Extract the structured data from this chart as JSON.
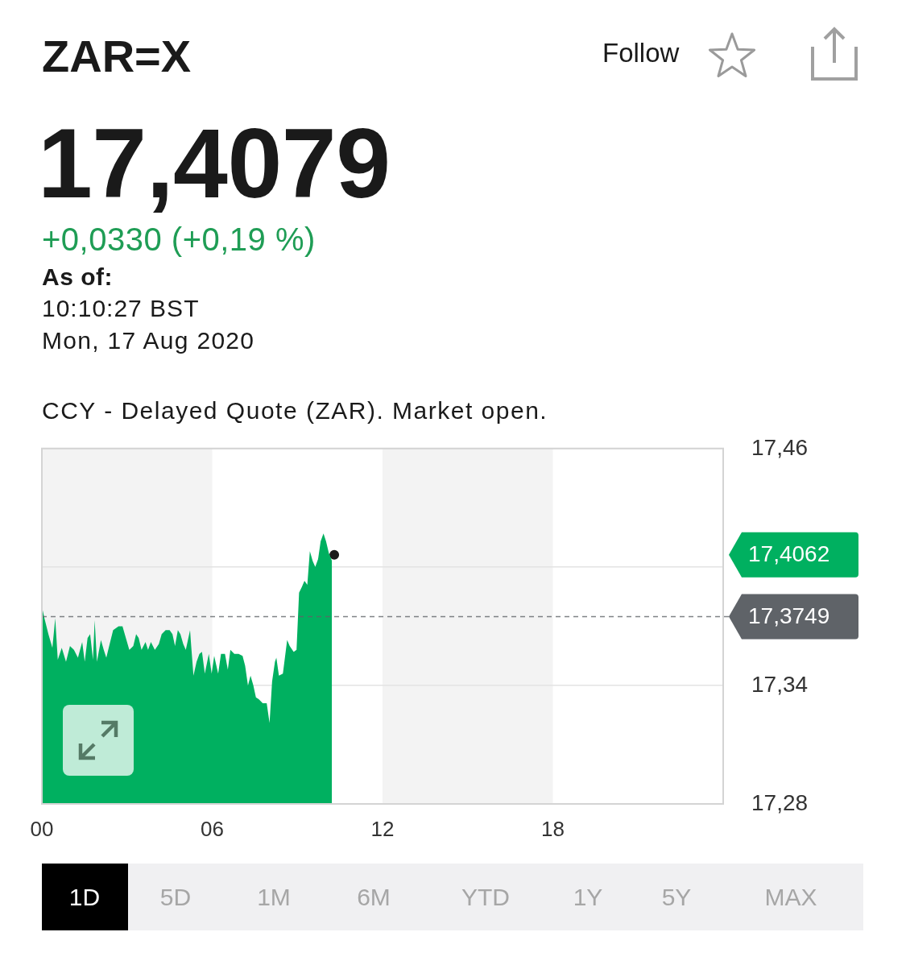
{
  "chart_data": {
    "type": "area",
    "title": "ZAR=X",
    "subtitle": "17,4079",
    "annotations": [
      "+0,0330 (+0,19 %)",
      "As of:",
      "10:10:27 BST",
      "Mon, 17 Aug 2020",
      "CCY - Delayed Quote (ZAR). Market open.",
      "Follow",
      "1D",
      "5D",
      "1M",
      "6M",
      "YTD",
      "1Y",
      "5Y",
      "MAX",
      "17,4062"
    ],
    "xlim": [
      0,
      24
    ],
    "xticks": [
      {
        "value": 0,
        "label": "00"
      },
      {
        "value": 6,
        "label": "06"
      },
      {
        "value": 12,
        "label": "12"
      },
      {
        "value": 18,
        "label": "18"
      }
    ],
    "ylim": [
      17.28,
      17.46
    ],
    "yticks": [
      {
        "value": 17.28,
        "label": "17,28"
      },
      {
        "value": 17.34,
        "label": "17,34"
      },
      {
        "value": 17.4,
        "label": null
      },
      {
        "value": 17.46,
        "label": "17,46"
      }
    ],
    "grid": "y",
    "bands": [
      {
        "axis": "x",
        "from": 0,
        "to": 6,
        "color": "#f3f3f3"
      },
      {
        "axis": "x",
        "from": 12,
        "to": 18,
        "color": "#f3f3f3"
      }
    ],
    "ref_lines": [
      {
        "axis": "y",
        "value": 17.3749,
        "label": "17,3749",
        "color": "#5f6368",
        "line_style": "dashed"
      }
    ],
    "series": [
      {
        "color": "#00b060",
        "x": [
          0,
          0.09,
          0.23,
          0.37,
          0.47,
          0.56,
          0.7,
          0.85,
          0.99,
          1.13,
          1.27,
          1.42,
          1.51,
          1.61,
          1.7,
          1.8,
          1.86,
          1.94,
          2.08,
          2.18,
          2.27,
          2.37,
          2.51,
          2.7,
          2.84,
          2.94,
          3.08,
          3.22,
          3.32,
          3.41,
          3.51,
          3.65,
          3.74,
          3.84,
          3.98,
          4.12,
          4.22,
          4.36,
          4.5,
          4.6,
          4.69,
          4.79,
          4.88,
          4.98,
          5.07,
          5.22,
          5.26,
          5.34,
          5.45,
          5.55,
          5.64,
          5.74,
          5.88,
          5.98,
          6.07,
          6.21,
          6.31,
          6.45,
          6.55,
          6.64,
          6.78,
          6.93,
          7.07,
          7.16,
          7.26,
          7.35,
          7.45,
          7.54,
          7.64,
          7.78,
          7.92,
          8.02,
          8.11,
          8.21,
          8.26,
          8.35,
          8.49,
          8.64,
          8.73,
          8.87,
          8.97,
          9.06,
          9.16,
          9.25,
          9.35,
          9.44,
          9.54,
          9.63,
          9.73,
          9.82,
          9.92,
          10.01,
          10.11,
          10.22
        ],
        "values": [
          17.38,
          17.374,
          17.366,
          17.359,
          17.374,
          17.353,
          17.359,
          17.352,
          17.36,
          17.358,
          17.354,
          17.362,
          17.352,
          17.364,
          17.366,
          17.353,
          17.373,
          17.352,
          17.363,
          17.358,
          17.354,
          17.36,
          17.368,
          17.37,
          17.37,
          17.365,
          17.358,
          17.36,
          17.366,
          17.364,
          17.358,
          17.362,
          17.358,
          17.362,
          17.358,
          17.361,
          17.366,
          17.368,
          17.368,
          17.366,
          17.36,
          17.368,
          17.366,
          17.361,
          17.358,
          17.368,
          17.36,
          17.345,
          17.352,
          17.356,
          17.357,
          17.346,
          17.356,
          17.346,
          17.355,
          17.346,
          17.356,
          17.356,
          17.348,
          17.358,
          17.356,
          17.356,
          17.355,
          17.35,
          17.34,
          17.345,
          17.34,
          17.334,
          17.333,
          17.331,
          17.331,
          17.321,
          17.342,
          17.352,
          17.354,
          17.345,
          17.346,
          17.363,
          17.36,
          17.357,
          17.358,
          17.387,
          17.39,
          17.393,
          17.391,
          17.408,
          17.403,
          17.4,
          17.404,
          17.413,
          17.417,
          17.413,
          17.407,
          17.403
        ]
      },
      {
        "type": "scatter",
        "color": "#1a1a1a",
        "marker": "circle",
        "x": [
          10.3
        ],
        "values": [
          17.4062
        ]
      }
    ]
  }
}
